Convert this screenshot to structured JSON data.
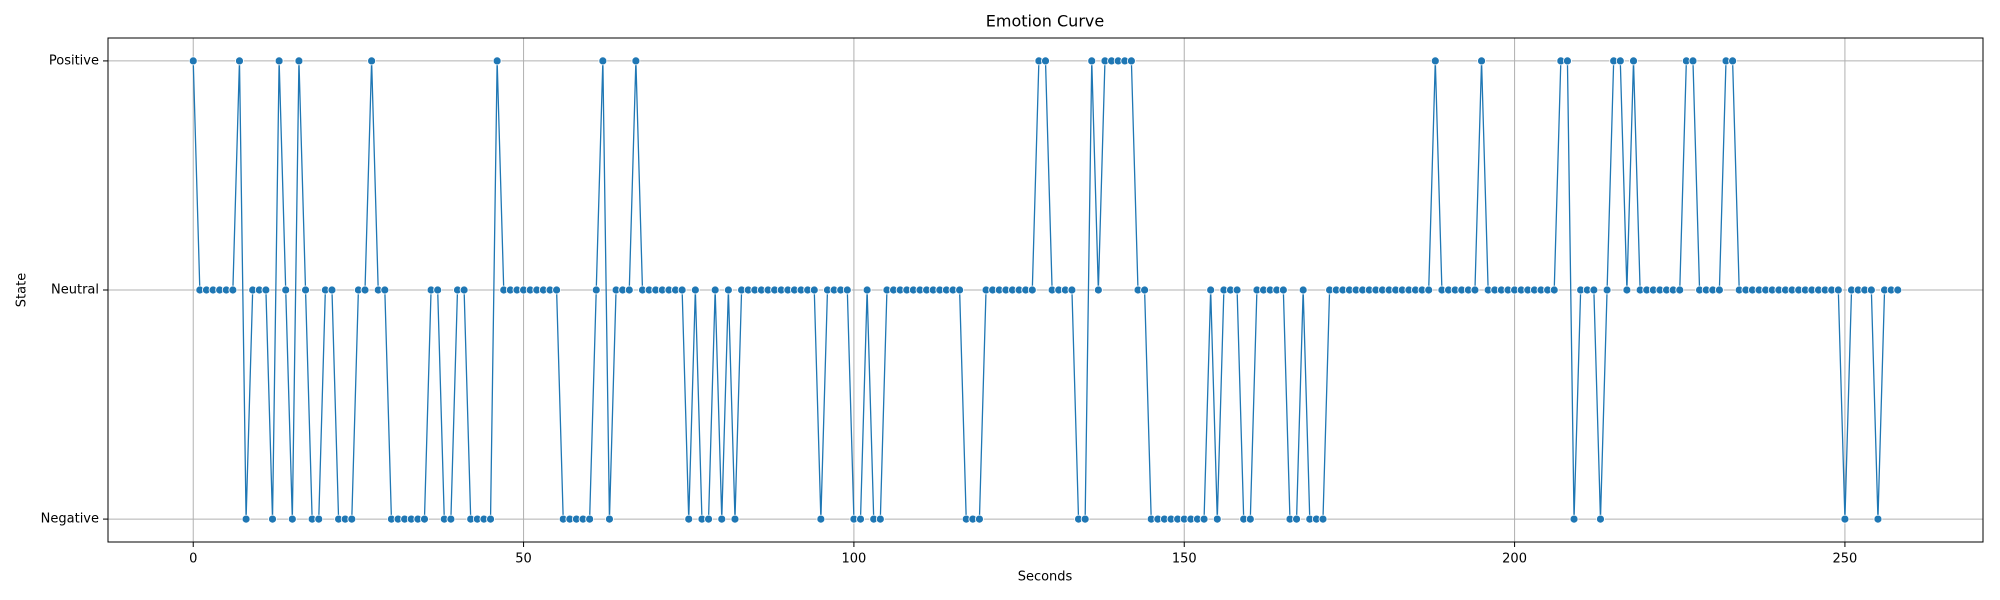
{
  "chart_data": {
    "type": "line",
    "title": "Emotion Curve",
    "x_label": "Seconds",
    "y_label": "State",
    "color": "#1f77b4",
    "grid": true,
    "xlim": [
      -12.9,
      270.9
    ],
    "xticks": [
      0,
      50,
      100,
      150,
      200,
      250
    ],
    "ylim": [
      -0.1,
      2.1
    ],
    "yticks": [
      {
        "value": 0,
        "label": "Negative"
      },
      {
        "value": 1,
        "label": "Neutral"
      },
      {
        "value": 2,
        "label": "Positive"
      }
    ],
    "x": [
      0,
      1,
      2,
      3,
      4,
      5,
      6,
      7,
      8,
      9,
      10,
      11,
      12,
      13,
      14,
      15,
      16,
      17,
      18,
      19,
      20,
      21,
      22,
      23,
      24,
      25,
      26,
      27,
      28,
      29,
      30,
      31,
      32,
      33,
      34,
      35,
      36,
      37,
      38,
      39,
      40,
      41,
      42,
      43,
      44,
      45,
      46,
      47,
      48,
      49,
      50,
      51,
      52,
      53,
      54,
      55,
      56,
      57,
      58,
      59,
      60,
      61,
      62,
      63,
      64,
      65,
      66,
      67,
      68,
      69,
      70,
      71,
      72,
      73,
      74,
      75,
      76,
      77,
      78,
      79,
      80,
      81,
      82,
      83,
      84,
      85,
      86,
      87,
      88,
      89,
      90,
      91,
      92,
      93,
      94,
      95,
      96,
      97,
      98,
      99,
      100,
      101,
      102,
      103,
      104,
      105,
      106,
      107,
      108,
      109,
      110,
      111,
      112,
      113,
      114,
      115,
      116,
      117,
      118,
      119,
      120,
      121,
      122,
      123,
      124,
      125,
      126,
      127,
      128,
      129,
      130,
      131,
      132,
      133,
      134,
      135,
      136,
      137,
      138,
      139,
      140,
      141,
      142,
      143,
      144,
      145,
      146,
      147,
      148,
      149,
      150,
      151,
      152,
      153,
      154,
      155,
      156,
      157,
      158,
      159,
      160,
      161,
      162,
      163,
      164,
      165,
      166,
      167,
      168,
      169,
      170,
      171,
      172,
      173,
      174,
      175,
      176,
      177,
      178,
      179,
      180,
      181,
      182,
      183,
      184,
      185,
      186,
      187,
      188,
      189,
      190,
      191,
      192,
      193,
      194,
      195,
      196,
      197,
      198,
      199,
      200,
      201,
      202,
      203,
      204,
      205,
      206,
      207,
      208,
      209,
      210,
      211,
      212,
      213,
      214,
      215,
      216,
      217,
      218,
      219,
      220,
      221,
      222,
      223,
      224,
      225,
      226,
      227,
      228,
      229,
      230,
      231,
      232,
      233,
      234,
      235,
      236,
      237,
      238,
      239,
      240,
      241,
      242,
      243,
      244,
      245,
      246,
      247,
      248,
      249,
      250,
      251,
      252,
      253,
      254,
      255,
      256,
      257,
      258
    ],
    "values": [
      2,
      1,
      1,
      1,
      1,
      1,
      1,
      2,
      0,
      1,
      1,
      1,
      0,
      2,
      1,
      0,
      2,
      1,
      0,
      0,
      1,
      1,
      0,
      0,
      0,
      1,
      1,
      2,
      1,
      1,
      0,
      0,
      0,
      0,
      0,
      0,
      1,
      1,
      0,
      0,
      1,
      1,
      0,
      0,
      0,
      0,
      2,
      1,
      1,
      1,
      1,
      1,
      1,
      1,
      1,
      1,
      0,
      0,
      0,
      0,
      0,
      1,
      2,
      0,
      1,
      1,
      1,
      2,
      1,
      1,
      1,
      1,
      1,
      1,
      1,
      0,
      1,
      0,
      0,
      1,
      0,
      1,
      0,
      1,
      1,
      1,
      1,
      1,
      1,
      1,
      1,
      1,
      1,
      1,
      1,
      0,
      1,
      1,
      1,
      1,
      0,
      0,
      1,
      0,
      0,
      1,
      1,
      1,
      1,
      1,
      1,
      1,
      1,
      1,
      1,
      1,
      1,
      0,
      0,
      0,
      1,
      1,
      1,
      1,
      1,
      1,
      1,
      1,
      2,
      2,
      1,
      1,
      1,
      1,
      0,
      0,
      2,
      1,
      2,
      2,
      2,
      2,
      2,
      1,
      1,
      0,
      0,
      0,
      0,
      0,
      0,
      0,
      0,
      0,
      1,
      0,
      1,
      1,
      1,
      0,
      0,
      1,
      1,
      1,
      1,
      1,
      0,
      0,
      1,
      0,
      0,
      0,
      1,
      1,
      1,
      1,
      1,
      1,
      1,
      1,
      1,
      1,
      1,
      1,
      1,
      1,
      1,
      1,
      2,
      1,
      1,
      1,
      1,
      1,
      1,
      2,
      1,
      1,
      1,
      1,
      1,
      1,
      1,
      1,
      1,
      1,
      1,
      2,
      2,
      0,
      1,
      1,
      1,
      0,
      1,
      2,
      2,
      1,
      2,
      1,
      1,
      1,
      1,
      1,
      1,
      1,
      2,
      2,
      1,
      1,
      1,
      1,
      2,
      2,
      1,
      1,
      1,
      1,
      1,
      1,
      1,
      1,
      1,
      1,
      1,
      1,
      1,
      1,
      1,
      1,
      0,
      1,
      1,
      1,
      1,
      0,
      1,
      1,
      1
    ]
  }
}
